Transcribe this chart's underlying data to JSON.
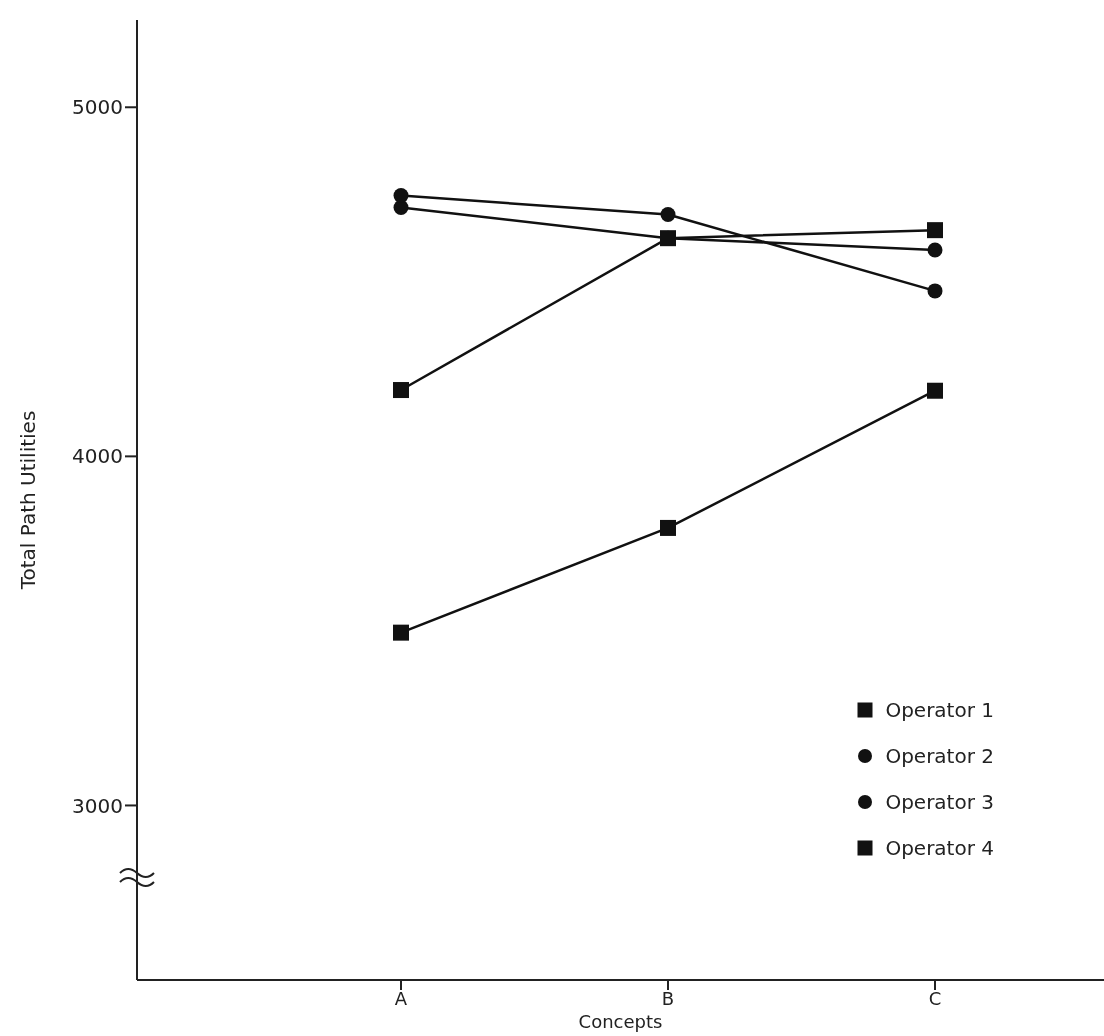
{
  "chart_data": {
    "type": "line",
    "xlabel": "Concepts",
    "ylabel": "Total Path Utilities",
    "categories": [
      "A",
      "B",
      "C"
    ],
    "series": [
      {
        "name": "Operator 1",
        "color": "#111111",
        "marker": "square",
        "values": [
          3495,
          3795,
          4188
        ]
      },
      {
        "name": "Operator 2",
        "color": "#111111",
        "marker": "circle",
        "values": [
          4713,
          4625,
          4591
        ]
      },
      {
        "name": "Operator 3",
        "color": "#111111",
        "marker": "circle",
        "values": [
          4747,
          4693,
          4474
        ]
      },
      {
        "name": "Operator 4",
        "color": "#111111",
        "marker": "square",
        "values": [
          4190,
          4625,
          4648
        ]
      }
    ],
    "ylim": [
      2500,
      5250
    ],
    "yticks": [
      3000,
      4000,
      5000
    ],
    "grid": false,
    "legend": "bottom right"
  }
}
